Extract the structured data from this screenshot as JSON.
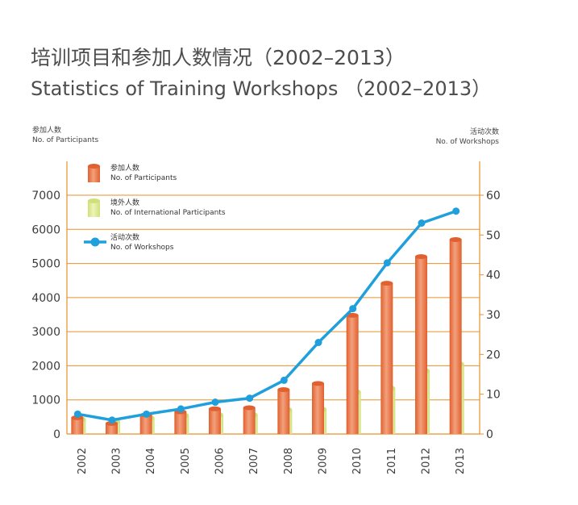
{
  "title_cn": "培训项目和参加人数情况（2002–2013）",
  "title_en": "Statistics of Training Workshops （2002–2013）",
  "left_axis": {
    "label_cn": "参加人数",
    "label_en": "No. of Participants"
  },
  "right_axis": {
    "label_cn": "活动次数",
    "label_en": "No. of Workshops"
  },
  "legend": [
    {
      "key": "participants",
      "label_cn": "参加人数",
      "label_en": "No. of Participants"
    },
    {
      "key": "international",
      "label_cn": "境外人数",
      "label_en": "No. of International Participants"
    },
    {
      "key": "workshops",
      "label_cn": "活动次数",
      "label_en": "No. of Workshops"
    }
  ],
  "colors": {
    "participants": "#e0612f",
    "participants_light": "#f3a07c",
    "international": "#cfe07a",
    "international_light": "#eef5b8",
    "workshops": "#1fa0dc",
    "grid": "#e8902a"
  },
  "chart_data": {
    "type": "bar+line",
    "categories": [
      "2002",
      "2003",
      "2004",
      "2005",
      "2006",
      "2007",
      "2008",
      "2009",
      "2010",
      "2011",
      "2012",
      "2013"
    ],
    "series": [
      {
        "name": "No. of Participants",
        "axis": "left",
        "type": "bar",
        "values": [
          480,
          310,
          560,
          650,
          740,
          770,
          1300,
          1480,
          3480,
          4420,
          5200,
          5700
        ]
      },
      {
        "name": "No. of International Participants",
        "axis": "left",
        "type": "bar",
        "values": [
          430,
          370,
          470,
          540,
          560,
          560,
          710,
          720,
          1230,
          1340,
          1850,
          2050
        ]
      },
      {
        "name": "No. of Workshops",
        "axis": "right",
        "type": "line",
        "values": [
          5,
          3.5,
          5,
          6.3,
          8,
          9,
          13.5,
          23,
          31.5,
          43,
          53,
          56
        ]
      }
    ],
    "y_left": {
      "min": 0,
      "max": 7000,
      "ticks": [
        0,
        1000,
        2000,
        3000,
        4000,
        5000,
        6000,
        7000
      ]
    },
    "y_right": {
      "min": 0,
      "max": 60,
      "ticks": [
        0,
        10,
        20,
        30,
        40,
        50,
        60
      ]
    },
    "grid": true,
    "legend_position": "top-left"
  }
}
